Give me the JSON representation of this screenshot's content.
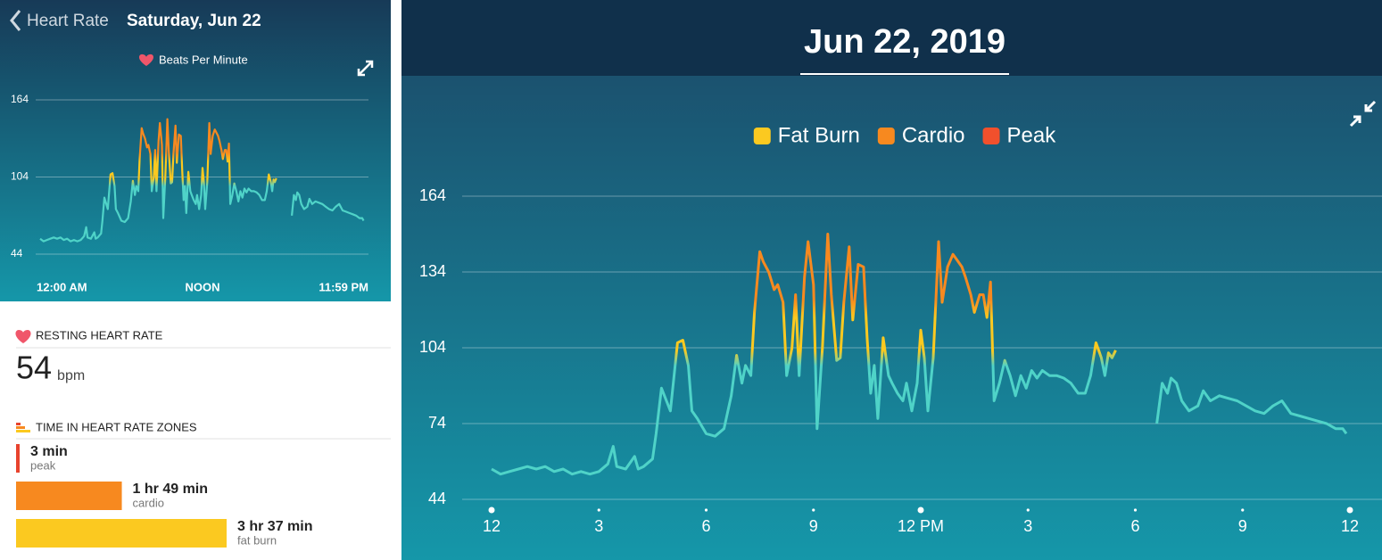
{
  "header": {
    "back": "Heart Rate",
    "date": "Saturday, Jun 22"
  },
  "chart_data": [
    {
      "type": "line",
      "legend": "Beats Per Minute",
      "xlim": [
        0,
        24
      ],
      "ylim": [
        44,
        164
      ],
      "yticks": [
        44,
        104,
        164
      ],
      "xticks": [
        {
          "value": 0,
          "label": "12:00 AM"
        },
        {
          "value": 12,
          "label": "NOON"
        },
        {
          "value": 24,
          "label": "11:59 PM"
        }
      ],
      "grid": true
    },
    {
      "type": "line",
      "title": "Jun 22, 2019",
      "legend": [
        {
          "name": "Fat Burn",
          "color": "#fbc920"
        },
        {
          "name": "Cardio",
          "color": "#f7891f"
        },
        {
          "name": "Peak",
          "color": "#f1502c"
        }
      ],
      "xlim": [
        0,
        24
      ],
      "ylim": [
        44,
        164
      ],
      "yticks": [
        44,
        74,
        104,
        134,
        164
      ],
      "xticks": [
        {
          "value": 0,
          "label": "12"
        },
        3,
        6,
        9,
        {
          "value": 12,
          "label": "12 PM"
        },
        {
          "value": 15,
          "label": "3"
        },
        {
          "value": 18,
          "label": "6"
        },
        {
          "value": 21,
          "label": "9"
        },
        {
          "value": 24,
          "label": "12"
        }
      ],
      "grid": true,
      "color": "#4fd3c8",
      "x": [
        0,
        0.25,
        0.5,
        0.75,
        1,
        1.25,
        1.5,
        1.75,
        2,
        2.25,
        2.5,
        2.75,
        3,
        3.25,
        3.4,
        3.5,
        3.75,
        4,
        4.1,
        4.25,
        4.5,
        4.6,
        4.75,
        5,
        5.2,
        5.35,
        5.5,
        5.6,
        5.75,
        6,
        6.25,
        6.5,
        6.7,
        6.85,
        7,
        7.1,
        7.25,
        7.35,
        7.5,
        7.6,
        7.75,
        7.9,
        8,
        8.15,
        8.25,
        8.4,
        8.5,
        8.6,
        8.75,
        8.85,
        9,
        9.1,
        9.25,
        9.4,
        9.5,
        9.65,
        9.75,
        9.85,
        10,
        10.1,
        10.25,
        10.4,
        10.5,
        10.6,
        10.7,
        10.8,
        10.95,
        11.1,
        11.2,
        11.35,
        11.5,
        11.6,
        11.75,
        11.9,
        12,
        12.1,
        12.2,
        12.35,
        12.5,
        12.6,
        12.75,
        12.9,
        13,
        13.15,
        13.25,
        13.4,
        13.5,
        13.65,
        13.75,
        13.85,
        13.95,
        14.05,
        14.2,
        14.35,
        14.5,
        14.65,
        14.8,
        14.95,
        15.1,
        15.25,
        15.4,
        15.6,
        15.8,
        16,
        16.2,
        16.4,
        16.6,
        16.75,
        16.9,
        17.05,
        17.15,
        17.25,
        17.35,
        17.45,
        18,
        18.6,
        18.75,
        18.9,
        19,
        19.15,
        19.3,
        19.5,
        19.75,
        19.9,
        20.1,
        20.35,
        20.6,
        20.85,
        21.1,
        21.35,
        21.6,
        21.85,
        22.1,
        22.35,
        22.6,
        22.85,
        23.1,
        23.35,
        23.6,
        23.8,
        23.9
      ],
      "values": [
        56,
        54,
        55,
        56,
        57,
        56,
        57,
        55,
        56,
        54,
        55,
        54,
        55,
        58,
        65,
        57,
        56,
        61,
        56,
        57,
        60,
        70,
        88,
        79,
        106,
        107,
        97,
        79,
        76,
        70,
        69,
        72,
        85,
        101,
        90,
        97,
        93,
        118,
        142,
        138,
        134,
        127,
        129,
        122,
        93,
        104,
        125,
        93,
        132,
        146,
        129,
        72,
        104,
        149,
        125,
        99,
        100,
        122,
        144,
        115,
        137,
        136,
        108,
        86,
        97,
        76,
        108,
        93,
        90,
        86,
        83,
        90,
        79,
        90,
        111,
        100,
        79,
        100,
        146,
        122,
        136,
        141,
        139,
        136,
        132,
        125,
        118,
        125,
        125,
        116,
        130,
        83,
        90,
        99,
        93,
        85,
        93,
        88,
        95,
        92,
        95,
        93,
        93,
        92,
        90,
        86,
        86,
        93,
        106,
        100,
        93,
        102,
        100,
        103,
        null,
        74,
        90,
        86,
        92,
        90,
        83,
        79,
        81,
        87,
        83,
        85,
        84,
        83,
        81,
        79,
        78,
        81,
        83,
        78,
        77,
        76,
        75,
        74,
        72,
        72,
        70
      ]
    }
  ],
  "resting": {
    "title": "RESTING HEART RATE",
    "value": 54,
    "unit": "bpm"
  },
  "zones_title": "TIME IN HEART RATE ZONES",
  "zones": [
    {
      "value": 3,
      "value_label": "3 min",
      "name": "peak",
      "color": "#e8432e"
    },
    {
      "value": 109,
      "value_label": "1 hr 49 min",
      "name": "cardio",
      "color": "#f7891f"
    },
    {
      "value": 217,
      "value_label": "3 hr 37 min",
      "name": "fat burn",
      "color": "#fbc920"
    }
  ]
}
